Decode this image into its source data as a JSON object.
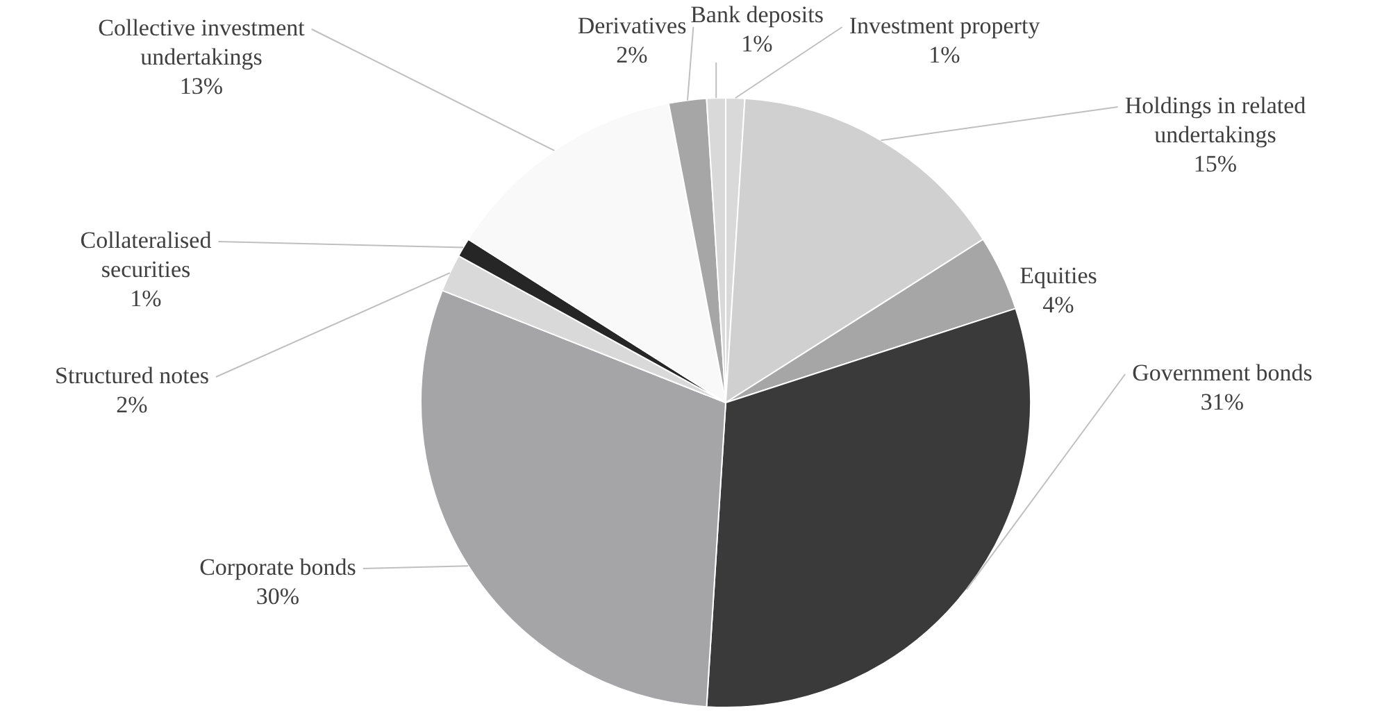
{
  "chart_data": {
    "type": "pie",
    "categories": [
      "Investment property",
      "Holdings in related undertakings",
      "Equities",
      "Government bonds",
      "Corporate bonds",
      "Structured notes",
      "Collateralised securities",
      "Collective investment undertakings",
      "Derivatives",
      "Bank deposits"
    ],
    "values": [
      1,
      15,
      4,
      31,
      30,
      2,
      1,
      13,
      2,
      1
    ],
    "value_labels": [
      "1%",
      "15%",
      "4%",
      "31%",
      "30%",
      "2%",
      "1%",
      "13%",
      "2%",
      "1%"
    ],
    "colors": [
      "#d9d9d9",
      "#d0d0d0",
      "#a6a6a6",
      "#3a3a3a",
      "#a5a5a7",
      "#d9d9d9",
      "#262626",
      "#f9f9f9",
      "#a6a6a6",
      "#d9d9d9"
    ],
    "legend": false
  }
}
